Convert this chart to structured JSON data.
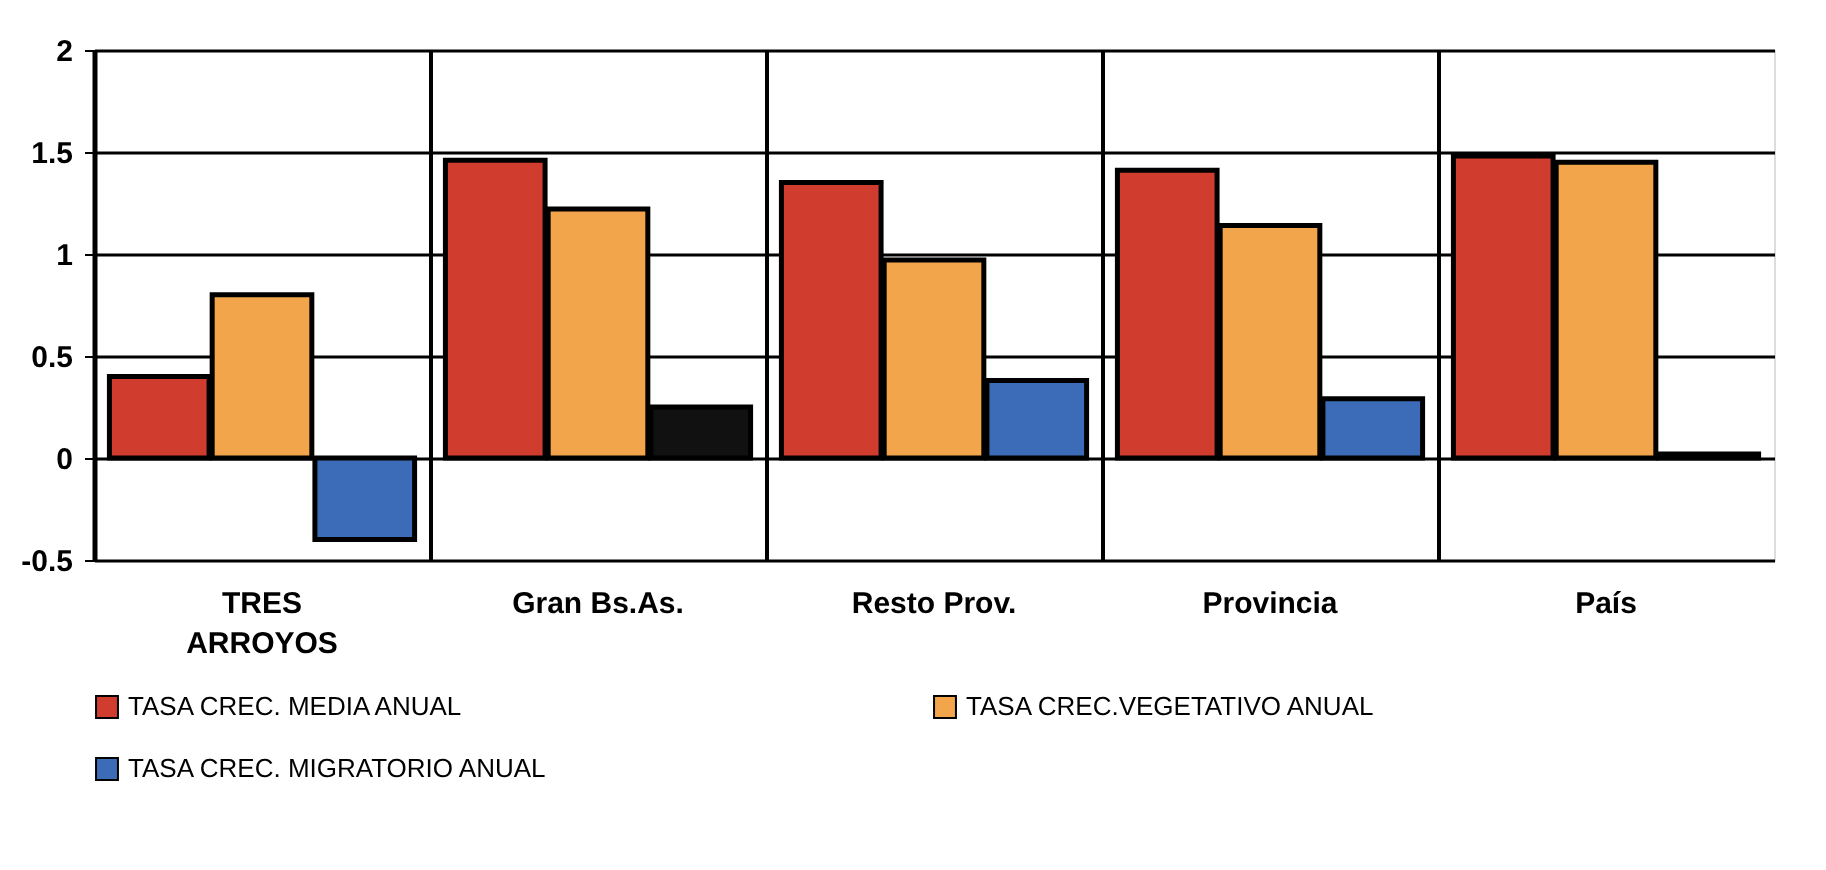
{
  "chart_data": {
    "type": "bar",
    "categories": [
      "TRES ARROYOS",
      "Gran Bs.As.",
      "Resto Prov.",
      "Provincia",
      "País"
    ],
    "series": [
      {
        "name": "TASA CREC. MEDIA ANUAL",
        "color": "#d03c2e",
        "values": [
          0.4,
          1.46,
          1.35,
          1.41,
          1.48
        ]
      },
      {
        "name": "TASA CREC.VEGETATIVO ANUAL",
        "color": "#f2a54a",
        "values": [
          0.8,
          1.22,
          0.97,
          1.14,
          1.45
        ]
      },
      {
        "name": "TASA CREC. MIGRATORIO ANUAL",
        "color": "#3c6cb8",
        "colors": [
          "#3c6cb8",
          "#111111",
          "#3c6cb8",
          "#3c6cb8",
          "#111111"
        ],
        "values": [
          -0.4,
          0.25,
          0.38,
          0.29,
          0.02
        ]
      }
    ],
    "ylim": [
      -0.5,
      2
    ],
    "yticks": [
      -0.5,
      0,
      0.5,
      1,
      1.5,
      2
    ],
    "grid": true,
    "legend": "bottom"
  }
}
